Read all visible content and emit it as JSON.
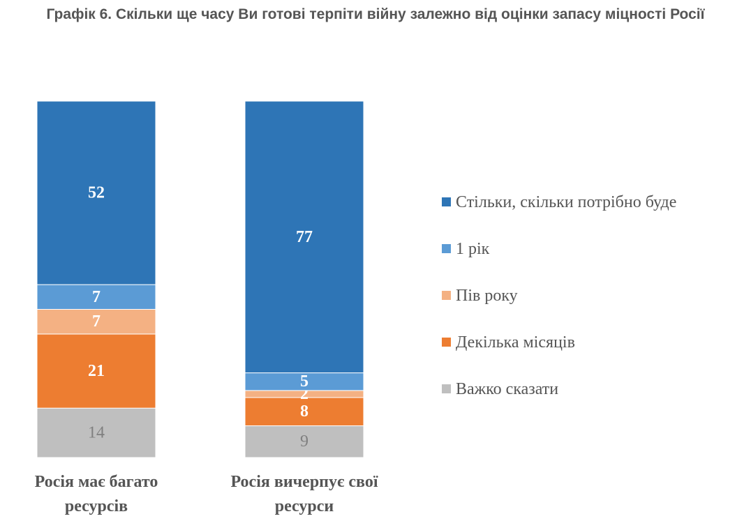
{
  "chart_data": {
    "type": "bar",
    "stacked": true,
    "title": "Графік 6. Скільки ще часу Ви готові терпіти війну залежно від оцінки запасу міцності Росії",
    "categories": [
      "Росія має багато ресурсів",
      "Росія вичерпує свої ресурси"
    ],
    "series": [
      {
        "name": "Стільки, скільки потрібно буде",
        "values": [
          52,
          77
        ],
        "color": "#2e75b6",
        "label_color": "#ffffff"
      },
      {
        "name": "1 рік",
        "values": [
          7,
          5
        ],
        "color": "#5b9bd5",
        "label_color": "#ffffff"
      },
      {
        "name": "Пів року",
        "values": [
          7,
          2
        ],
        "color": "#f4b183",
        "label_color": "#ffffff"
      },
      {
        "name": "Декілька місяців",
        "values": [
          21,
          8
        ],
        "color": "#ed7d31",
        "label_color": "#ffffff"
      },
      {
        "name": "Важко сказати",
        "values": [
          14,
          9
        ],
        "color": "#bfbfbf",
        "label_color": "#7f7f7f"
      }
    ],
    "legend_position": "right",
    "ylim": [
      0,
      101
    ],
    "grid": false
  }
}
